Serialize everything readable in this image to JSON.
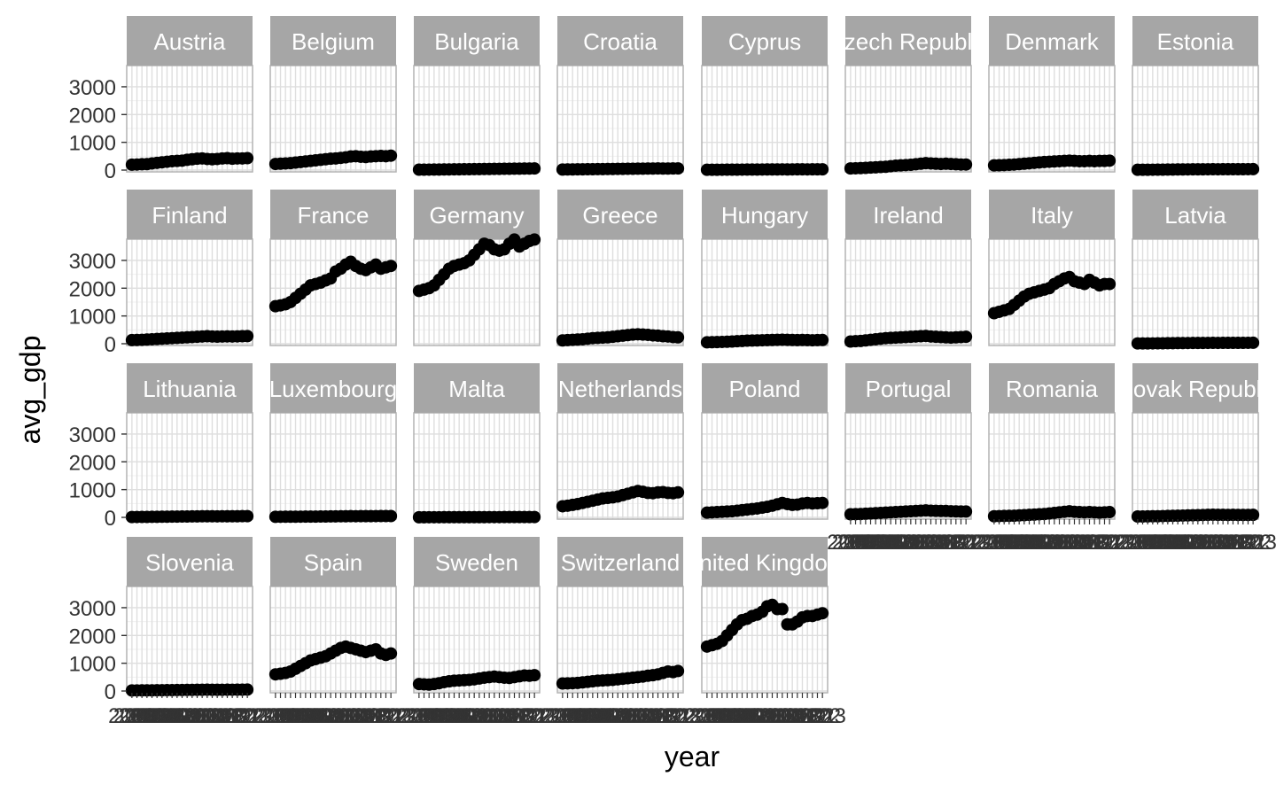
{
  "chart_data": {
    "type": "scatter",
    "layout": "facet-wrap",
    "facet_ncol": 8,
    "xlabel": "year",
    "ylabel": "avg_gdp",
    "ylim": [
      0,
      3700
    ],
    "yticks": [
      0,
      1000,
      2000,
      3000
    ],
    "x": [
      2000,
      2001,
      2002,
      2003,
      2004,
      2005,
      2006,
      2007,
      2008,
      2009,
      2010,
      2011,
      2012,
      2013,
      2014,
      2015,
      2016,
      2017,
      2018,
      2019,
      2020,
      2021,
      2022,
      2023
    ],
    "xticks": [
      "2000",
      "2001",
      "2002",
      "2003",
      "2004",
      "2005",
      "2006",
      "2007",
      "2008",
      "2009",
      "2010",
      "2011",
      "2012",
      "2013",
      "2014",
      "2015",
      "2016",
      "2017",
      "2018",
      "2019",
      "2020",
      "2021",
      "2022",
      "2023"
    ],
    "grid": true,
    "facet_strip_color": "#a6a6a6",
    "point_color": "#000000",
    "series": [
      {
        "name": "Austria",
        "values": [
          195,
          200,
          210,
          215,
          240,
          260,
          280,
          300,
          320,
          330,
          340,
          370,
          390,
          410,
          420,
          400,
          390,
          400,
          420,
          430,
          410,
          420,
          420,
          430
        ]
      },
      {
        "name": "Belgium",
        "values": [
          220,
          230,
          240,
          250,
          270,
          290,
          310,
          330,
          350,
          370,
          390,
          410,
          420,
          440,
          460,
          490,
          500,
          480,
          470,
          490,
          500,
          510,
          500,
          520
        ]
      },
      {
        "name": "Bulgaria",
        "values": [
          15,
          16,
          17,
          18,
          20,
          22,
          24,
          26,
          28,
          30,
          32,
          34,
          36,
          38,
          40,
          42,
          44,
          46,
          48,
          50,
          52,
          54,
          56,
          58
        ]
      },
      {
        "name": "Croatia",
        "values": [
          20,
          22,
          24,
          26,
          28,
          30,
          32,
          34,
          36,
          38,
          40,
          42,
          44,
          46,
          48,
          50,
          52,
          54,
          56,
          58,
          55,
          56,
          58,
          60
        ]
      },
      {
        "name": "Cyprus",
        "values": [
          10,
          11,
          12,
          13,
          14,
          15,
          16,
          17,
          18,
          19,
          20,
          21,
          22,
          23,
          24,
          25,
          24,
          25,
          26,
          27,
          25,
          26,
          27,
          28
        ]
      },
      {
        "name": "Czech Republic",
        "values": [
          60,
          65,
          70,
          80,
          90,
          100,
          110,
          120,
          140,
          160,
          170,
          180,
          190,
          210,
          230,
          250,
          240,
          230,
          220,
          230,
          220,
          210,
          200,
          200
        ]
      },
      {
        "name": "Denmark",
        "values": [
          170,
          175,
          180,
          190,
          200,
          215,
          230,
          245,
          260,
          275,
          290,
          300,
          310,
          320,
          330,
          340,
          330,
          320,
          320,
          330,
          320,
          330,
          330,
          340
        ]
      },
      {
        "name": "Estonia",
        "values": [
          10,
          11,
          12,
          13,
          14,
          16,
          18,
          20,
          22,
          24,
          25,
          26,
          27,
          28,
          29,
          30,
          29,
          30,
          31,
          32,
          31,
          32,
          33,
          34
        ]
      },
      {
        "name": "Finland",
        "values": [
          130,
          135,
          140,
          150,
          160,
          170,
          180,
          190,
          200,
          210,
          220,
          230,
          240,
          250,
          260,
          270,
          260,
          255,
          260,
          265,
          260,
          265,
          270,
          275
        ]
      },
      {
        "name": "France",
        "values": [
          1350,
          1380,
          1420,
          1500,
          1650,
          1800,
          1950,
          2100,
          2150,
          2200,
          2280,
          2350,
          2600,
          2700,
          2850,
          2950,
          2800,
          2700,
          2650,
          2750,
          2850,
          2700,
          2750,
          2800
        ]
      },
      {
        "name": "Germany",
        "values": [
          1900,
          1950,
          2000,
          2100,
          2300,
          2500,
          2700,
          2800,
          2850,
          2900,
          3000,
          3200,
          3400,
          3600,
          3550,
          3400,
          3350,
          3400,
          3600,
          3750,
          3500,
          3600,
          3700,
          3750
        ]
      },
      {
        "name": "Greece",
        "values": [
          120,
          130,
          140,
          150,
          160,
          180,
          200,
          210,
          220,
          230,
          250,
          270,
          290,
          310,
          330,
          340,
          330,
          320,
          300,
          290,
          270,
          260,
          240,
          230
        ]
      },
      {
        "name": "Hungary",
        "values": [
          50,
          55,
          60,
          65,
          70,
          80,
          90,
          100,
          110,
          115,
          120,
          125,
          130,
          135,
          140,
          145,
          140,
          135,
          130,
          135,
          130,
          125,
          130,
          135
        ]
      },
      {
        "name": "Ireland",
        "values": [
          80,
          90,
          100,
          120,
          140,
          160,
          180,
          200,
          210,
          220,
          230,
          240,
          250,
          260,
          270,
          280,
          260,
          250,
          240,
          230,
          220,
          230,
          240,
          250
        ]
      },
      {
        "name": "Italy",
        "values": [
          1100,
          1150,
          1200,
          1250,
          1400,
          1550,
          1700,
          1800,
          1850,
          1900,
          1950,
          2000,
          2150,
          2250,
          2350,
          2400,
          2250,
          2200,
          2150,
          2300,
          2200,
          2100,
          2150,
          2150
        ]
      },
      {
        "name": "Latvia",
        "values": [
          10,
          11,
          12,
          13,
          14,
          16,
          18,
          20,
          22,
          24,
          25,
          26,
          27,
          28,
          29,
          30,
          29,
          30,
          31,
          32,
          31,
          32,
          33,
          34
        ]
      },
      {
        "name": "Lithuania",
        "values": [
          12,
          13,
          14,
          16,
          18,
          20,
          22,
          24,
          26,
          28,
          30,
          32,
          34,
          36,
          38,
          40,
          38,
          37,
          38,
          40,
          39,
          40,
          42,
          44
        ]
      },
      {
        "name": "Luxembourg",
        "values": [
          20,
          21,
          22,
          23,
          24,
          25,
          26,
          27,
          28,
          30,
          32,
          34,
          36,
          38,
          40,
          42,
          41,
          42,
          43,
          44,
          45,
          46,
          47,
          48
        ]
      },
      {
        "name": "Malta",
        "values": [
          4,
          4,
          5,
          5,
          5,
          6,
          6,
          6,
          7,
          7,
          7,
          8,
          8,
          8,
          9,
          9,
          9,
          10,
          10,
          10,
          11,
          11,
          12,
          12
        ]
      },
      {
        "name": "Netherlands",
        "values": [
          400,
          420,
          450,
          480,
          520,
          560,
          600,
          640,
          680,
          700,
          720,
          750,
          800,
          850,
          900,
          950,
          920,
          880,
          870,
          900,
          910,
          880,
          870,
          900
        ]
      },
      {
        "name": "Poland",
        "values": [
          170,
          180,
          190,
          200,
          210,
          220,
          240,
          260,
          280,
          300,
          320,
          350,
          380,
          420,
          470,
          520,
          480,
          450,
          460,
          500,
          520,
          500,
          510,
          520
        ]
      },
      {
        "name": "Portugal",
        "values": [
          110,
          115,
          120,
          130,
          140,
          150,
          160,
          170,
          180,
          190,
          200,
          210,
          220,
          230,
          240,
          250,
          240,
          235,
          230,
          230,
          220,
          215,
          210,
          210
        ]
      },
      {
        "name": "Romania",
        "values": [
          40,
          45,
          50,
          55,
          60,
          70,
          80,
          90,
          100,
          110,
          120,
          140,
          160,
          180,
          200,
          220,
          200,
          190,
          180,
          190,
          180,
          170,
          180,
          190
        ]
      },
      {
        "name": "Slovak Republic",
        "values": [
          30,
          32,
          35,
          38,
          40,
          45,
          50,
          55,
          60,
          65,
          70,
          75,
          80,
          85,
          90,
          95,
          92,
          90,
          88,
          90,
          88,
          86,
          88,
          90
        ]
      },
      {
        "name": "Slovenia",
        "values": [
          20,
          21,
          22,
          23,
          24,
          26,
          28,
          30,
          32,
          34,
          36,
          38,
          40,
          42,
          44,
          46,
          44,
          43,
          44,
          46,
          45,
          46,
          48,
          50
        ]
      },
      {
        "name": "Spain",
        "values": [
          600,
          620,
          650,
          700,
          800,
          900,
          1000,
          1100,
          1150,
          1200,
          1250,
          1350,
          1450,
          1550,
          1600,
          1550,
          1500,
          1450,
          1400,
          1450,
          1500,
          1350,
          1300,
          1350
        ]
      },
      {
        "name": "Sweden",
        "values": [
          250,
          240,
          230,
          250,
          280,
          320,
          350,
          370,
          380,
          390,
          400,
          420,
          450,
          480,
          500,
          520,
          500,
          480,
          470,
          500,
          530,
          560,
          550,
          570
        ]
      },
      {
        "name": "Switzerland",
        "values": [
          270,
          275,
          280,
          290,
          310,
          330,
          350,
          370,
          380,
          390,
          400,
          420,
          440,
          460,
          480,
          500,
          520,
          550,
          570,
          600,
          650,
          700,
          680,
          720
        ]
      },
      {
        "name": "United Kingdom",
        "values": [
          1600,
          1650,
          1700,
          1800,
          2000,
          2200,
          2400,
          2550,
          2600,
          2700,
          2750,
          2850,
          3050,
          3100,
          2950,
          2950,
          2400,
          2400,
          2500,
          2650,
          2700,
          2700,
          2750,
          2800
        ]
      }
    ]
  }
}
